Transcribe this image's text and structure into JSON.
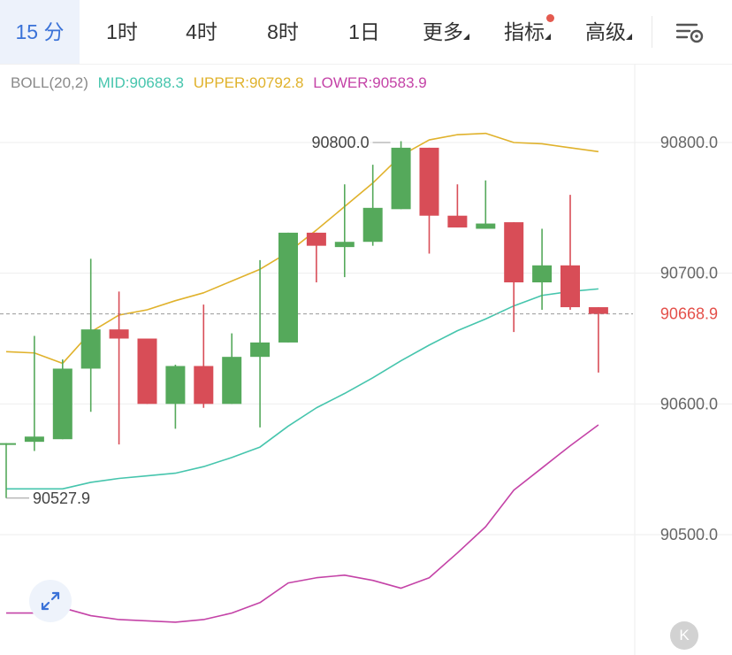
{
  "tabs": [
    {
      "label": "15 分",
      "active": true
    },
    {
      "label": "1时"
    },
    {
      "label": "4时"
    },
    {
      "label": "8时"
    },
    {
      "label": "1日"
    },
    {
      "label": "更多",
      "dropdown": true
    },
    {
      "label": "指标",
      "dropdown": true,
      "badge": true
    },
    {
      "label": "高级",
      "dropdown": true
    }
  ],
  "legend": {
    "boll": "BOLL(20,2)",
    "mid": "MID:90688.3",
    "upper": "UPPER:90792.8",
    "lower": "LOWER:90583.9"
  },
  "colors": {
    "up": "#55a95b",
    "down": "#d84d57",
    "mid": "#46c5ad",
    "upper": "#e0b22c",
    "lower": "#c443a7",
    "current": "#e4504a",
    "accent": "#3a72d8"
  },
  "icons": {
    "setting": "chart-settings-icon",
    "expand": "expand-arrows-icon",
    "k": "k-line-icon"
  },
  "k_label": "K",
  "chart_data": {
    "type": "candlestick",
    "y_axis": {
      "ticks": [
        90800.0,
        90700.0,
        90600.0,
        90500.0
      ],
      "range": [
        90441,
        90854
      ],
      "position": "right"
    },
    "labels": {
      "high_marker": "90800.0",
      "low_marker": "90527.9",
      "current_price": "90668.9"
    },
    "high_marker_value": 90800,
    "low_marker_value": 90527.9,
    "current_price_value": 90668.9,
    "candles": [
      {
        "o": 90570,
        "h": 90570,
        "l": 90528,
        "c": 90570
      },
      {
        "o": 90571,
        "h": 90652,
        "l": 90564,
        "c": 90575
      },
      {
        "o": 90573,
        "h": 90634,
        "l": 90573,
        "c": 90627
      },
      {
        "o": 90627,
        "h": 90711,
        "l": 90594,
        "c": 90657
      },
      {
        "o": 90657,
        "h": 90686,
        "l": 90569,
        "c": 90650
      },
      {
        "o": 90650,
        "h": 90650,
        "l": 90600,
        "c": 90600
      },
      {
        "o": 90600,
        "h": 90630,
        "l": 90581,
        "c": 90629
      },
      {
        "o": 90629,
        "h": 90676,
        "l": 90597,
        "c": 90600
      },
      {
        "o": 90600,
        "h": 90654,
        "l": 90600,
        "c": 90636
      },
      {
        "o": 90636,
        "h": 90710,
        "l": 90582,
        "c": 90647
      },
      {
        "o": 90647,
        "h": 90731,
        "l": 90647,
        "c": 90731
      },
      {
        "o": 90731,
        "h": 90731,
        "l": 90693,
        "c": 90721
      },
      {
        "o": 90720,
        "h": 90768,
        "l": 90697,
        "c": 90724
      },
      {
        "o": 90724,
        "h": 90783,
        "l": 90721,
        "c": 90750
      },
      {
        "o": 90749,
        "h": 90801,
        "l": 90749,
        "c": 90796
      },
      {
        "o": 90796,
        "h": 90796,
        "l": 90715,
        "c": 90744
      },
      {
        "o": 90744,
        "h": 90768,
        "l": 90735,
        "c": 90735
      },
      {
        "o": 90734,
        "h": 90771,
        "l": 90734,
        "c": 90738
      },
      {
        "o": 90739,
        "h": 90739,
        "l": 90655,
        "c": 90693
      },
      {
        "o": 90693,
        "h": 90734,
        "l": 90672,
        "c": 90706
      },
      {
        "o": 90706,
        "h": 90760,
        "l": 90672,
        "c": 90674
      },
      {
        "o": 90674,
        "h": 90674,
        "l": 90624,
        "c": 90668.9
      }
    ],
    "series": [
      {
        "key": "upper",
        "name": "UPPER",
        "values": [
          90640,
          90639,
          90631,
          90655,
          90668,
          90672,
          90679,
          90685,
          90694,
          90703,
          90716,
          90733,
          90751,
          90769,
          90790,
          90802,
          90806,
          90807,
          90800,
          90799,
          90796,
          90793
        ]
      },
      {
        "key": "mid",
        "name": "MID",
        "values": [
          90535,
          90535,
          90535,
          90540,
          90543,
          90545,
          90547,
          90552,
          90559,
          90567,
          90583,
          90597,
          90608,
          90620,
          90633,
          90645,
          90656,
          90665,
          90675,
          90683,
          90686,
          90688
        ]
      },
      {
        "key": "lower",
        "name": "LOWER",
        "values": [
          90440,
          90440,
          90444,
          90438,
          90435,
          90434,
          90433,
          90435,
          90440,
          90448,
          90463,
          90467,
          90469,
          90465,
          90459,
          90467,
          90486,
          90506,
          90534,
          90551,
          90568,
          90584
        ]
      }
    ]
  }
}
